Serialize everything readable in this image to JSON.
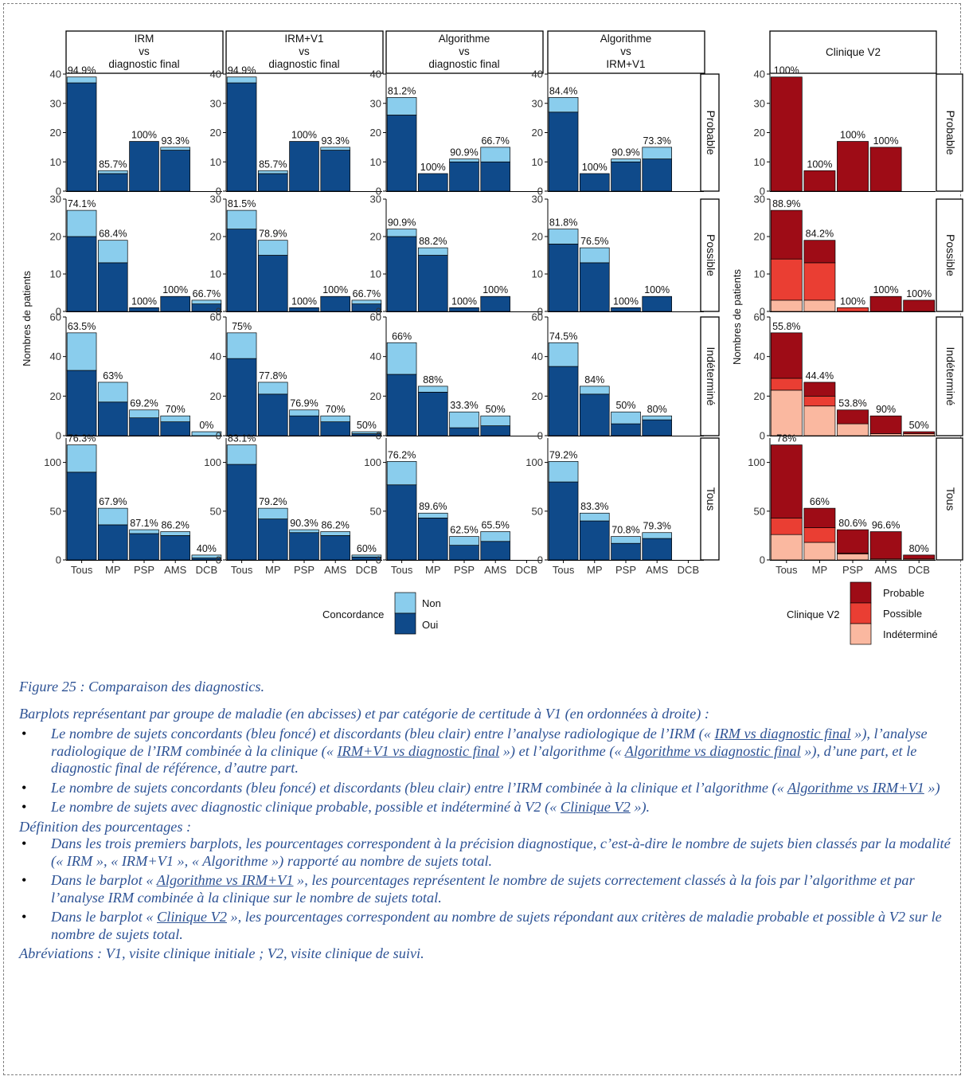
{
  "colors": {
    "oui": "#0F4A8A",
    "non": "#8ACDED",
    "probable": "#9E0C16",
    "possible": "#EA3E33",
    "indetermine": "#FAB8A0",
    "caption": "#2E5395"
  },
  "chart_data": [
    {
      "type": "bar",
      "title": "IRM vs diagnostic final",
      "ylabel": "Nombres de patients",
      "categories": [
        "Tous",
        "MP",
        "PSP",
        "AMS",
        "DCB"
      ],
      "rows": [
        {
          "label": "Probable",
          "ylim": [
            0,
            40
          ],
          "oui": [
            37,
            6,
            17,
            14,
            0
          ],
          "non": [
            2,
            1,
            0,
            1,
            0
          ],
          "labels": [
            "94.9%",
            "85.7%",
            "100%",
            "93.3%",
            ""
          ]
        },
        {
          "label": "Possible",
          "ylim": [
            0,
            30
          ],
          "oui": [
            20,
            13,
            1,
            4,
            2
          ],
          "non": [
            7,
            6,
            0,
            0,
            1
          ],
          "labels": [
            "74.1%",
            "68.4%",
            "100%",
            "100%",
            "66.7%"
          ]
        },
        {
          "label": "Indéterminé",
          "ylim": [
            0,
            60
          ],
          "oui": [
            33,
            17,
            9,
            7,
            0
          ],
          "non": [
            19,
            10,
            4,
            3,
            2
          ],
          "labels": [
            "63.5%",
            "63%",
            "69.2%",
            "70%",
            "0%"
          ]
        },
        {
          "label": "Tous",
          "ylim": [
            0,
            125
          ],
          "oui": [
            90,
            36,
            27,
            25,
            2
          ],
          "non": [
            28,
            17,
            4,
            4,
            3
          ],
          "labels": [
            "76.3%",
            "67.9%",
            "87.1%",
            "86.2%",
            "40%"
          ]
        }
      ]
    },
    {
      "type": "bar",
      "title": "IRM+V1 vs diagnostic final",
      "categories": [
        "Tous",
        "MP",
        "PSP",
        "AMS",
        "DCB"
      ],
      "rows": [
        {
          "label": "Probable",
          "ylim": [
            0,
            40
          ],
          "oui": [
            37,
            6,
            17,
            14,
            0
          ],
          "non": [
            2,
            1,
            0,
            1,
            0
          ],
          "labels": [
            "94.9%",
            "85.7%",
            "100%",
            "93.3%",
            ""
          ]
        },
        {
          "label": "Possible",
          "ylim": [
            0,
            30
          ],
          "oui": [
            22,
            15,
            1,
            4,
            2
          ],
          "non": [
            5,
            4,
            0,
            0,
            1
          ],
          "labels": [
            "81.5%",
            "78.9%",
            "100%",
            "100%",
            "66.7%"
          ]
        },
        {
          "label": "Indéterminé",
          "ylim": [
            0,
            60
          ],
          "oui": [
            39,
            21,
            10,
            7,
            1
          ],
          "non": [
            13,
            6,
            3,
            3,
            1
          ],
          "labels": [
            "75%",
            "77.8%",
            "76.9%",
            "70%",
            "50%"
          ]
        },
        {
          "label": "Tous",
          "ylim": [
            0,
            125
          ],
          "oui": [
            98,
            42,
            28,
            25,
            3
          ],
          "non": [
            20,
            11,
            3,
            4,
            2
          ],
          "labels": [
            "83.1%",
            "79.2%",
            "90.3%",
            "86.2%",
            "60%"
          ]
        }
      ]
    },
    {
      "type": "bar",
      "title": "Algorithme vs diagnostic final",
      "categories": [
        "Tous",
        "MP",
        "PSP",
        "AMS",
        "DCB"
      ],
      "rows": [
        {
          "label": "Probable",
          "ylim": [
            0,
            40
          ],
          "oui": [
            26,
            6,
            10,
            10,
            0
          ],
          "non": [
            6,
            0,
            1,
            5,
            0
          ],
          "labels": [
            "81.2%",
            "100%",
            "90.9%",
            "66.7%",
            ""
          ]
        },
        {
          "label": "Possible",
          "ylim": [
            0,
            30
          ],
          "oui": [
            20,
            15,
            1,
            4,
            0
          ],
          "non": [
            2,
            2,
            0,
            0,
            0
          ],
          "labels": [
            "90.9%",
            "88.2%",
            "100%",
            "100%",
            ""
          ]
        },
        {
          "label": "Indéterminé",
          "ylim": [
            0,
            60
          ],
          "oui": [
            31,
            22,
            4,
            5,
            0
          ],
          "non": [
            16,
            3,
            8,
            5,
            0
          ],
          "labels": [
            "66%",
            "88%",
            "33.3%",
            "50%",
            ""
          ]
        },
        {
          "label": "Tous",
          "ylim": [
            0,
            125
          ],
          "oui": [
            77,
            43,
            15,
            19,
            0
          ],
          "non": [
            24,
            5,
            9,
            10,
            0
          ],
          "labels": [
            "76.2%",
            "89.6%",
            "62.5%",
            "65.5%",
            ""
          ]
        }
      ]
    },
    {
      "type": "bar",
      "title": "Algorithme vs IRM+V1",
      "categories": [
        "Tous",
        "MP",
        "PSP",
        "AMS",
        "DCB"
      ],
      "rows": [
        {
          "label": "Probable",
          "ylim": [
            0,
            40
          ],
          "oui": [
            27,
            6,
            10,
            11,
            0
          ],
          "non": [
            5,
            0,
            1,
            4,
            0
          ],
          "labels": [
            "84.4%",
            "100%",
            "90.9%",
            "73.3%",
            ""
          ]
        },
        {
          "label": "Possible",
          "ylim": [
            0,
            30
          ],
          "oui": [
            18,
            13,
            1,
            4,
            0
          ],
          "non": [
            4,
            4,
            0,
            0,
            0
          ],
          "labels": [
            "81.8%",
            "76.5%",
            "100%",
            "100%",
            ""
          ]
        },
        {
          "label": "Indéterminé",
          "ylim": [
            0,
            60
          ],
          "oui": [
            35,
            21,
            6,
            8,
            0
          ],
          "non": [
            12,
            4,
            6,
            2,
            0
          ],
          "labels": [
            "74.5%",
            "84%",
            "50%",
            "80%",
            ""
          ]
        },
        {
          "label": "Tous",
          "ylim": [
            0,
            125
          ],
          "oui": [
            80,
            40,
            17,
            22,
            0
          ],
          "non": [
            21,
            8,
            7,
            6,
            0
          ],
          "labels": [
            "79.2%",
            "83.3%",
            "70.8%",
            "79.3%",
            ""
          ]
        }
      ]
    },
    {
      "type": "bar",
      "title": "Clinique V2",
      "ylabel": "Nombres de patients",
      "categories": [
        "Tous",
        "MP",
        "PSP",
        "AMS",
        "DCB"
      ],
      "rows": [
        {
          "label": "Probable",
          "ylim": [
            0,
            40
          ],
          "probable": [
            39,
            7,
            17,
            15,
            0
          ],
          "possible": [
            0,
            0,
            0,
            0,
            0
          ],
          "indetermine": [
            0,
            0,
            0,
            0,
            0
          ],
          "labels": [
            "100%",
            "100%",
            "100%",
            "100%",
            ""
          ]
        },
        {
          "label": "Possible",
          "ylim": [
            0,
            30
          ],
          "probable": [
            13,
            6,
            0,
            4,
            3
          ],
          "possible": [
            11,
            10,
            1,
            0,
            0
          ],
          "indetermine": [
            3,
            3,
            0,
            0,
            0
          ],
          "labels": [
            "88.9%",
            "84.2%",
            "100%",
            "100%",
            "100%"
          ]
        },
        {
          "label": "Indéterminé",
          "ylim": [
            0,
            60
          ],
          "probable": [
            23,
            7,
            7,
            9,
            1
          ],
          "possible": [
            6,
            5,
            0,
            0,
            0
          ],
          "indetermine": [
            23,
            15,
            6,
            1,
            1
          ],
          "labels": [
            "55.8%",
            "44.4%",
            "53.8%",
            "90%",
            "50%"
          ]
        },
        {
          "label": "Tous",
          "ylim": [
            0,
            125
          ],
          "probable": [
            75,
            20,
            24,
            28,
            4
          ],
          "possible": [
            17,
            15,
            1,
            0,
            0
          ],
          "indetermine": [
            26,
            18,
            6,
            1,
            1
          ],
          "labels": [
            "78%",
            "66%",
            "80.6%",
            "96.6%",
            "80%"
          ]
        }
      ]
    }
  ],
  "ticks": {
    "Probable": [
      "0",
      "10",
      "20",
      "30",
      "40"
    ],
    "Possible": [
      "0",
      "10",
      "20",
      "30"
    ],
    "Indéterminé": [
      "0",
      "20",
      "40",
      "60"
    ],
    "Tous": [
      "0",
      "50",
      "100"
    ]
  },
  "tick_values": {
    "Probable": [
      0,
      10,
      20,
      30,
      40
    ],
    "Possible": [
      0,
      10,
      20,
      30
    ],
    "Indéterminé": [
      0,
      20,
      40,
      60
    ],
    "Tous": [
      0,
      50,
      100
    ]
  },
  "title_lines": [
    [
      "IRM",
      "vs",
      "diagnostic final"
    ],
    [
      "IRM+V1",
      "vs",
      "diagnostic final"
    ],
    [
      "Algorithme",
      "vs",
      "diagnostic final"
    ],
    [
      "Algorithme",
      "vs",
      "IRM+V1"
    ],
    [
      "Clinique V2"
    ]
  ],
  "legend_blue": {
    "title": "Concordance",
    "items": [
      "Non",
      "Oui"
    ]
  },
  "legend_red": {
    "title": "Clinique V2",
    "items": [
      "Probable",
      "Possible",
      "Indéterminé"
    ]
  },
  "caption": {
    "title": "Figure 25 : Comparaison des diagnostics.",
    "intro": "Barplots représentant par groupe de maladie (en abcisses) et par catégorie de certitude à V1 (en ordonnées à droite) :",
    "b1_a": "Le nombre de sujets concordants (bleu foncé) et discordants (bleu clair) entre l’analyse radiologique de l’IRM (« ",
    "b1_u1": "IRM vs diagnostic final",
    "b1_b": " »), l’analyse radiologique de l’IRM combinée à la clinique (« ",
    "b1_u2": "IRM+V1 vs diagnostic final",
    "b1_c": " ») et l’algorithme (« ",
    "b1_u3": "Algorithme vs diagnostic final",
    "b1_d": " »), d’une part, et le diagnostic final de référence, d’autre part.",
    "b2_a": "Le nombre de sujets concordants (bleu foncé) et discordants (bleu clair) entre l’IRM combinée à la clinique et l’algorithme (« ",
    "b2_u": "Algorithme vs IRM+V1",
    "b2_b": " »)",
    "b3_a": "Le nombre de sujets avec diagnostic clinique probable, possible et indéterminé à V2 (« ",
    "b3_u": "Clinique V2",
    "b3_b": " »).",
    "def": "Définition des pourcentages :",
    "d1": "Dans les trois premiers barplots, les pourcentages correspondent à la précision diagnostique, c’est-à-dire le nombre de sujets bien classés par la modalité (« IRM », « IRM+V1 », « Algorithme ») rapporté au nombre de sujets total.",
    "d2_a": "Dans le barplot « ",
    "d2_u": "Algorithme vs IRM+V1",
    "d2_b": " », les pourcentages représentent le nombre de sujets correctement classés à la fois par l’algorithme et par l’analyse IRM combinée à la clinique sur le nombre de sujets total.",
    "d3_a": "Dans le barplot « ",
    "d3_u": "Clinique V2",
    "d3_b": " », les pourcentages correspondent au nombre de sujets répondant aux critères de maladie probable et possible à V2 sur le nombre de sujets total.",
    "abbr": "Abréviations : V1, visite clinique initiale ; V2, visite clinique de suivi."
  }
}
